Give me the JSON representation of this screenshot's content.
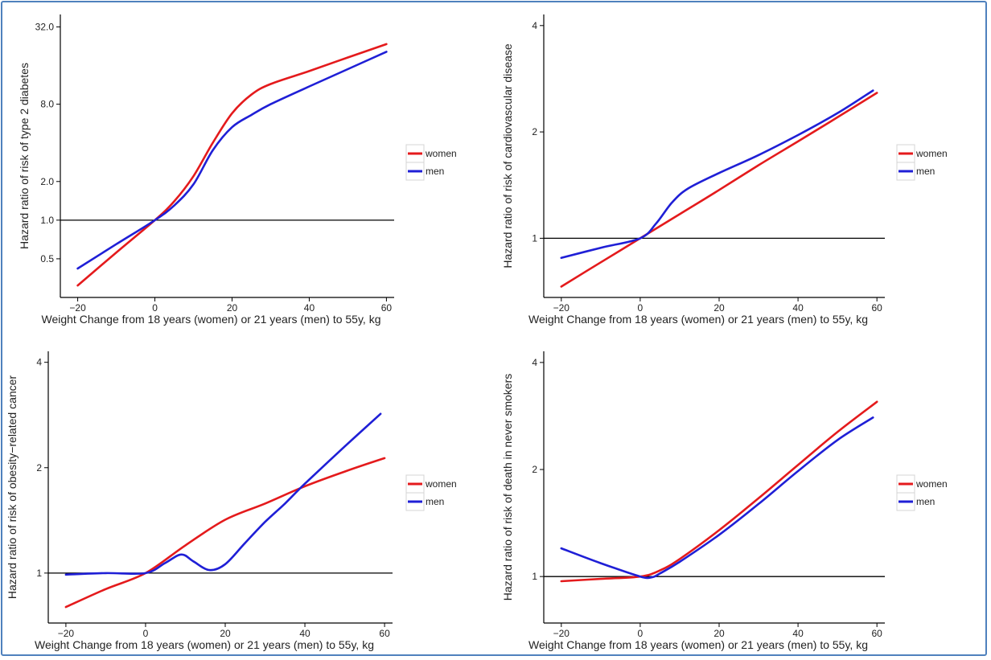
{
  "colors": {
    "women": "#e41a1c",
    "men": "#1f1fd6",
    "axis": "#000000",
    "frame": "#4f81bd"
  },
  "chart_data": [
    {
      "type": "line",
      "ylabel": "Hazard ratio of risk of type 2 diabetes",
      "xlabel": "Weight Change from 18 years (women) or 21 years (men) to 55y, kg",
      "yscale": "log2",
      "xlim": [
        -22,
        62
      ],
      "ylim": [
        0.25,
        40
      ],
      "xticks": [
        -20,
        0,
        20,
        40,
        60
      ],
      "xtick_labels": [
        "−20",
        "0",
        "20",
        "40",
        "60"
      ],
      "yticks": [
        0.5,
        1.0,
        2.0,
        8.0,
        32.0
      ],
      "ytick_labels": [
        "0.5",
        "1.0",
        "2.0",
        "8.0",
        "32.0"
      ],
      "reference_line": 1.0,
      "legend": [
        "women",
        "men"
      ],
      "series": [
        {
          "name": "women",
          "x": [
            -20,
            -10,
            0,
            5,
            10,
            15,
            20,
            25,
            30,
            40,
            50,
            60
          ],
          "y": [
            0.31,
            0.56,
            1.0,
            1.4,
            2.2,
            4.0,
            6.8,
            9.5,
            11.5,
            14.5,
            18.5,
            23.5
          ]
        },
        {
          "name": "men",
          "x": [
            -20,
            -10,
            0,
            5,
            10,
            15,
            20,
            25,
            30,
            40,
            50,
            60
          ],
          "y": [
            0.42,
            0.65,
            1.0,
            1.3,
            1.9,
            3.5,
            5.3,
            6.6,
            8.0,
            11.0,
            15.0,
            20.5
          ]
        }
      ]
    },
    {
      "type": "line",
      "ylabel": "Hazard ratio of risk of cardiovascular disease",
      "xlabel": "Weight Change from 18 years (women) or 21 years (men) to 55y, kg",
      "yscale": "log2",
      "xlim": [
        -22,
        62
      ],
      "ylim": [
        0.68,
        4.3
      ],
      "xticks": [
        -20,
        0,
        20,
        40,
        60
      ],
      "xtick_labels": [
        "−20",
        "0",
        "20",
        "40",
        "60"
      ],
      "yticks": [
        1,
        2,
        4
      ],
      "ytick_labels": [
        "1",
        "2",
        "4"
      ],
      "reference_line": 1,
      "legend": [
        "women",
        "men"
      ],
      "series": [
        {
          "name": "women",
          "x": [
            -20,
            -10,
            0,
            10,
            20,
            30,
            40,
            50,
            60
          ],
          "y": [
            0.73,
            0.855,
            1.0,
            1.17,
            1.37,
            1.61,
            1.88,
            2.2,
            2.58
          ]
        },
        {
          "name": "men",
          "x": [
            -20,
            -10,
            0,
            4,
            8,
            12,
            20,
            30,
            40,
            50,
            59
          ],
          "y": [
            0.88,
            0.94,
            1.0,
            1.1,
            1.26,
            1.38,
            1.53,
            1.72,
            1.96,
            2.26,
            2.62
          ]
        }
      ]
    },
    {
      "type": "line",
      "ylabel": "Hazard ratio of risk of obesity−related cancer",
      "xlabel": "Weight Change from 18 years (women) or 21 years (men) to 55y, kg",
      "yscale": "log2",
      "xlim": [
        -22,
        62
      ],
      "ylim": [
        0.72,
        4.3
      ],
      "xticks": [
        -20,
        0,
        20,
        40,
        60
      ],
      "xtick_labels": [
        "−20",
        "0",
        "20",
        "40",
        "60"
      ],
      "yticks": [
        1,
        2,
        4
      ],
      "ytick_labels": [
        "1",
        "2",
        "4"
      ],
      "reference_line": 1,
      "legend": [
        "women",
        "men"
      ],
      "series": [
        {
          "name": "women",
          "x": [
            -20,
            -10,
            0,
            10,
            20,
            30,
            40,
            50,
            60
          ],
          "y": [
            0.8,
            0.9,
            1.0,
            1.2,
            1.42,
            1.58,
            1.77,
            1.95,
            2.13
          ]
        },
        {
          "name": "men",
          "x": [
            -20,
            -10,
            0,
            5,
            9,
            12,
            16,
            20,
            25,
            30,
            35,
            40,
            50,
            59
          ],
          "y": [
            0.99,
            1.0,
            1.0,
            1.07,
            1.13,
            1.08,
            1.02,
            1.06,
            1.22,
            1.4,
            1.58,
            1.8,
            2.3,
            2.85
          ]
        }
      ]
    },
    {
      "type": "line",
      "ylabel": "Hazard ratio of risk of death in never smokers",
      "xlabel": "Weight Change from 18 years (women) or 21 years (men) to 55y, kg",
      "yscale": "log2",
      "xlim": [
        -22,
        62
      ],
      "ylim": [
        0.74,
        4.3
      ],
      "xticks": [
        -20,
        0,
        20,
        40,
        60
      ],
      "xtick_labels": [
        "−20",
        "0",
        "20",
        "40",
        "60"
      ],
      "yticks": [
        1,
        2,
        4
      ],
      "ytick_labels": [
        "1",
        "2",
        "4"
      ],
      "reference_line": 1,
      "legend": [
        "women",
        "men"
      ],
      "series": [
        {
          "name": "women",
          "x": [
            -20,
            -10,
            0,
            5,
            10,
            20,
            30,
            40,
            50,
            60
          ],
          "y": [
            0.97,
            0.985,
            1.0,
            1.04,
            1.12,
            1.35,
            1.66,
            2.06,
            2.55,
            3.1
          ]
        },
        {
          "name": "men",
          "x": [
            -20,
            -10,
            0,
            3,
            5,
            10,
            20,
            30,
            40,
            50,
            59
          ],
          "y": [
            1.2,
            1.09,
            1.0,
            0.995,
            1.02,
            1.1,
            1.31,
            1.6,
            1.98,
            2.42,
            2.8
          ]
        }
      ]
    }
  ]
}
